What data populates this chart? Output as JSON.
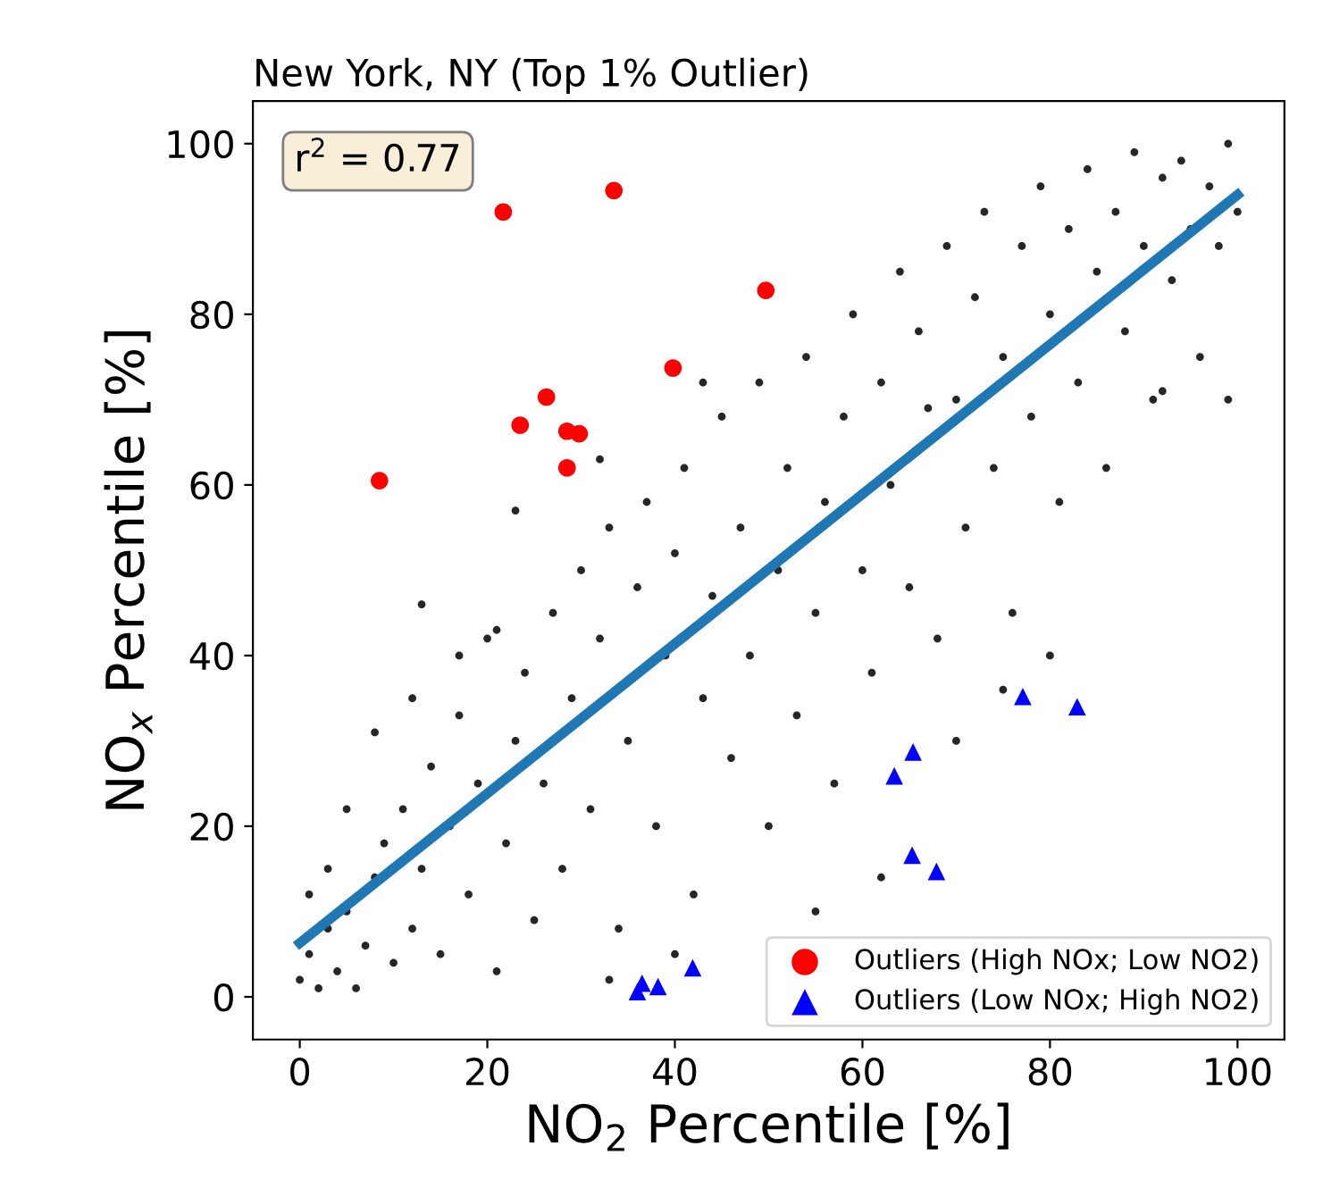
{
  "chart_data": {
    "type": "scatter",
    "title": "New York, NY (Top 1% Outlier)",
    "xlabel": "NO$_{2}$ Percentile [%]",
    "ylabel": "NO$_{x}$ Percentile [%]",
    "annotations": [
      "r$^{2}$ = 0.77"
    ],
    "xlim": [
      -5,
      105
    ],
    "ylim": [
      -5,
      105
    ],
    "xticks": [
      0,
      20,
      40,
      60,
      80,
      100
    ],
    "yticks": [
      0,
      20,
      40,
      60,
      80,
      100
    ],
    "grid": false,
    "legend": "bottom right",
    "series": [
      {
        "marker": "circle",
        "color": "#000000",
        "x": [
          0,
          1,
          2,
          3,
          1,
          4,
          5,
          6,
          7,
          3,
          8,
          10,
          9,
          12,
          11,
          13,
          14,
          15,
          16,
          17,
          18,
          19,
          20,
          21,
          22,
          23,
          24,
          25,
          26,
          27,
          28,
          29,
          30,
          31,
          32,
          33,
          34,
          35,
          36,
          37,
          38,
          39,
          40,
          41,
          42,
          43,
          44,
          45,
          46,
          47,
          48,
          49,
          50,
          51,
          52,
          53,
          54,
          55,
          56,
          57,
          58,
          59,
          60,
          61,
          62,
          63,
          64,
          65,
          66,
          67,
          68,
          69,
          70,
          71,
          72,
          73,
          74,
          75,
          76,
          77,
          78,
          79,
          80,
          81,
          82,
          83,
          84,
          85,
          86,
          87,
          88,
          89,
          90,
          91,
          92,
          93,
          94,
          95,
          96,
          97,
          98,
          99,
          100,
          5,
          12,
          8,
          17,
          21,
          33,
          40,
          55,
          62,
          70,
          92,
          99,
          75,
          80,
          32,
          23,
          13,
          43
        ],
        "values": [
          2,
          5,
          1,
          8,
          12,
          3,
          10,
          1,
          6,
          15,
          14,
          4,
          18,
          8,
          22,
          15,
          27,
          5,
          20,
          33,
          12,
          25,
          42,
          3,
          18,
          30,
          38,
          9,
          25,
          45,
          15,
          35,
          50,
          22,
          42,
          55,
          8,
          30,
          48,
          58,
          20,
          40,
          52,
          62,
          12,
          35,
          47,
          68,
          28,
          55,
          40,
          72,
          20,
          50,
          62,
          33,
          75,
          45,
          58,
          25,
          68,
          80,
          50,
          38,
          72,
          60,
          85,
          48,
          78,
          69,
          42,
          88,
          70,
          55,
          82,
          92,
          62,
          75,
          45,
          88,
          68,
          95,
          80,
          58,
          90,
          72,
          97,
          85,
          62,
          92,
          78,
          99,
          88,
          70,
          96,
          84,
          98,
          90,
          75,
          95,
          88,
          100,
          92,
          22,
          35,
          31,
          40,
          43,
          2,
          5,
          10,
          14,
          30,
          71,
          70,
          36,
          40,
          63,
          57,
          46,
          72
        ]
      },
      {
        "marker": "circle",
        "name": "Outliers (High NOx; Low NO2)",
        "color": "#ff0000",
        "x": [
          8.5,
          21.7,
          33.5,
          49.7,
          39.8,
          26.3,
          23.5,
          28.5,
          29.8,
          28.5
        ],
        "values": [
          60.5,
          92,
          94.5,
          82.8,
          73.7,
          70.3,
          67,
          66.3,
          66,
          62
        ]
      },
      {
        "marker": "triangle",
        "name": "Outliers (Low NOx; High NO2)",
        "color": "#0000ff",
        "x": [
          77.1,
          82.9,
          65.4,
          63.4,
          65.3,
          67.9,
          41.9,
          38.2,
          36.5,
          36.0
        ],
        "values": [
          35.2,
          34.0,
          28.7,
          25.9,
          16.6,
          14.7,
          3.4,
          1.2,
          1.6,
          0.6
        ]
      },
      {
        "type": "line",
        "marker": "none",
        "color": "#1f77b4",
        "x": [
          0,
          100
        ],
        "values": [
          6.3,
          94
        ]
      }
    ]
  }
}
